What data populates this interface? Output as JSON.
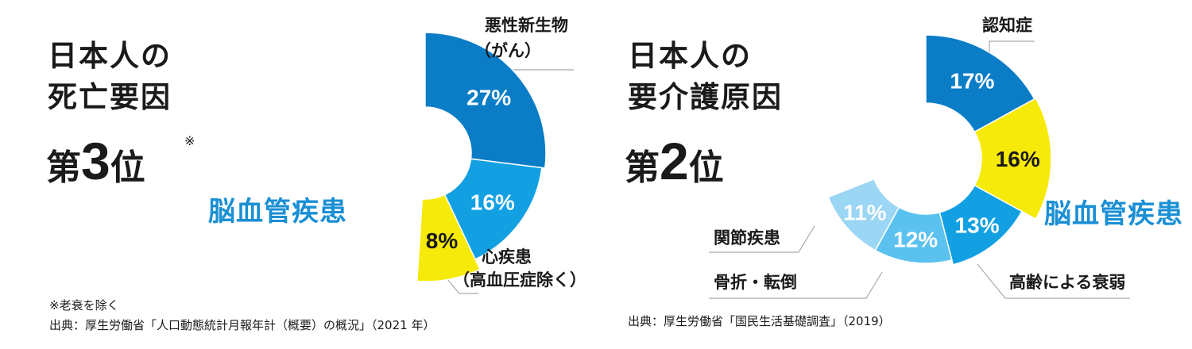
{
  "left": {
    "heading_line1": "日本人の",
    "heading_line2": "死亡要因",
    "rank_prefix": "第",
    "rank_number": "3",
    "rank_suffix": "位",
    "rank_note_mark": "※",
    "highlight_label": "脳血管疾患",
    "label_cancer_line1": "悪性新生物",
    "label_cancer_line2": "（がん）",
    "label_heart_line1": "心疾患",
    "label_heart_line2": "（高血圧症除く）",
    "footnote": "※老衰を除く",
    "source": "出典：厚生労働省「人口動態統計月報年計（概要）の概況」（2021 年）"
  },
  "right": {
    "heading_line1": "日本人の",
    "heading_line2": "要介護原因",
    "rank_prefix": "第",
    "rank_number": "2",
    "rank_suffix": "位",
    "highlight_label": "脳血管疾患",
    "label_dementia": "認知症",
    "label_joint": "関節疾患",
    "label_fracture": "骨折・転倒",
    "label_aging": "高齢による衰弱",
    "source": "出典：厚生労働省「国民生活基礎調査」（2019）"
  },
  "colors": {
    "dark_blue": "#0a7dc6",
    "mid_blue": "#12a0e3",
    "light_blue": "#5bc2ef",
    "pale_blue": "#9bd6f4",
    "yellow": "#f6ea0a",
    "accent_text": "#1a8fd4",
    "leader": "#aaaaaa"
  },
  "chart_data": [
    {
      "type": "pie",
      "variant": "donut-partial",
      "slices": [
        {
          "label": "悪性新生物（がん）",
          "value": 27,
          "value_label": "27%",
          "color": "#0a7dc6",
          "highlight": false
        },
        {
          "label": "心疾患（高血圧症除く）",
          "value": 16,
          "value_label": "16%",
          "color": "#12a0e3",
          "highlight": false
        },
        {
          "label": "脳血管疾患",
          "value": 8,
          "value_label": "8%",
          "color": "#f6ea0a",
          "highlight": true
        }
      ]
    },
    {
      "type": "pie",
      "variant": "donut-partial",
      "slices": [
        {
          "label": "認知症",
          "value": 17,
          "value_label": "17%",
          "color": "#0a7dc6",
          "highlight": false
        },
        {
          "label": "脳血管疾患",
          "value": 16,
          "value_label": "16%",
          "color": "#f6ea0a",
          "highlight": true
        },
        {
          "label": "高齢による衰弱",
          "value": 13,
          "value_label": "13%",
          "color": "#12a0e3",
          "highlight": false
        },
        {
          "label": "骨折・転倒",
          "value": 12,
          "value_label": "12%",
          "color": "#5bc2ef",
          "highlight": false
        },
        {
          "label": "関節疾患",
          "value": 11,
          "value_label": "11%",
          "color": "#9bd6f4",
          "highlight": false
        }
      ]
    }
  ]
}
